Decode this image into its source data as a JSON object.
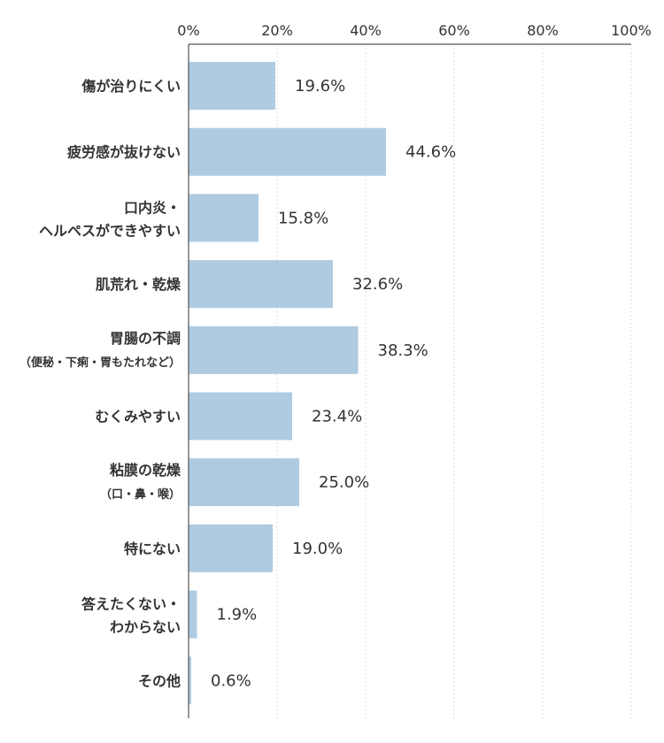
{
  "chart_data": {
    "type": "bar",
    "orientation": "horizontal",
    "x_ticks": [
      "0%",
      "20%",
      "40%",
      "60%",
      "80%",
      "100%"
    ],
    "xlim": [
      0,
      100
    ],
    "grid": true,
    "bar_color": "#afcbe1",
    "categories": [
      {
        "lines": [
          "傷が治りにくい"
        ],
        "sub": ""
      },
      {
        "lines": [
          "疲労感が抜けない"
        ],
        "sub": ""
      },
      {
        "lines": [
          "口内炎・",
          "ヘルペスができやすい"
        ],
        "sub": ""
      },
      {
        "lines": [
          "肌荒れ・乾燥"
        ],
        "sub": ""
      },
      {
        "lines": [
          "胃腸の不調"
        ],
        "sub": "（便秘・下痢・胃もたれなど）"
      },
      {
        "lines": [
          "むくみやすい"
        ],
        "sub": ""
      },
      {
        "lines": [
          "粘膜の乾燥"
        ],
        "sub": "（口・鼻・喉）"
      },
      {
        "lines": [
          "特にない"
        ],
        "sub": ""
      },
      {
        "lines": [
          "答えたくない・",
          "わからない"
        ],
        "sub": ""
      },
      {
        "lines": [
          "その他"
        ],
        "sub": ""
      }
    ],
    "values": [
      19.6,
      44.6,
      15.8,
      32.6,
      38.3,
      23.4,
      25.0,
      19.0,
      1.9,
      0.6
    ],
    "value_labels": [
      "19.6%",
      "44.6%",
      "15.8%",
      "32.6%",
      "38.3%",
      "23.4%",
      "25.0%",
      "19.0%",
      "1.9%",
      "0.6%"
    ]
  }
}
